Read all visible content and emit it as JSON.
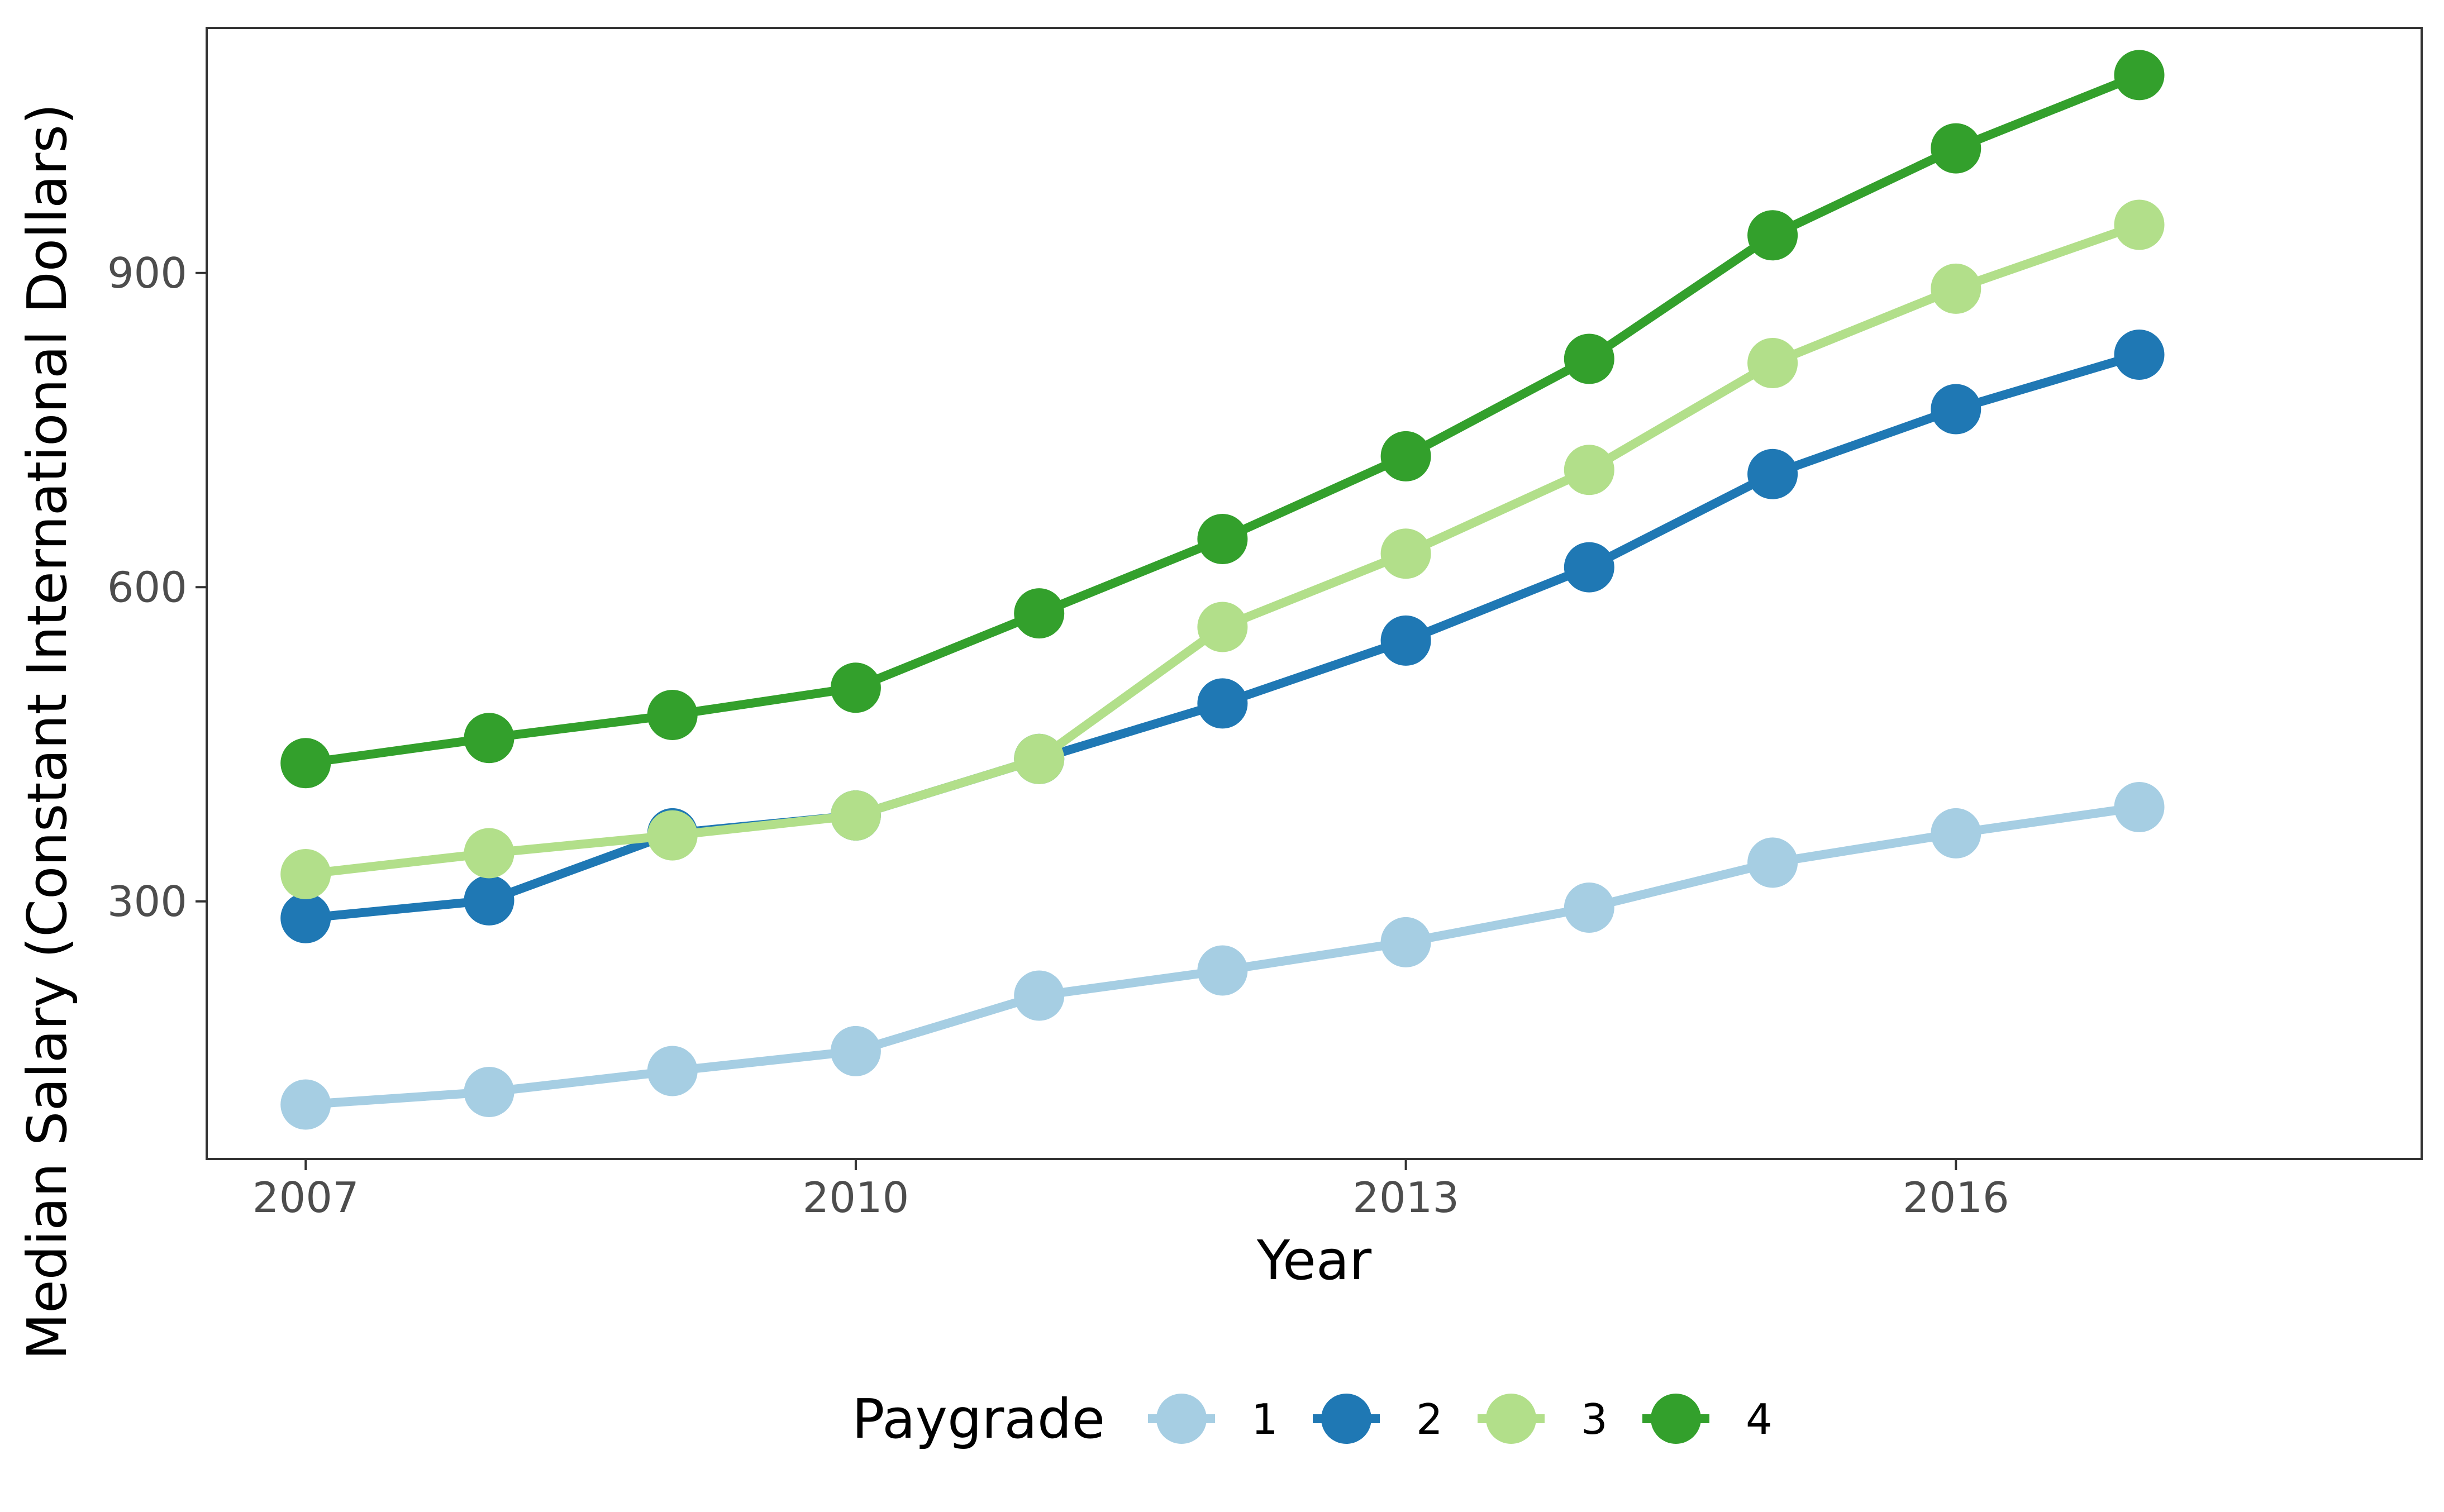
{
  "chart_data": {
    "type": "line",
    "title": "",
    "xlabel": "Year",
    "ylabel": "Median Salary (Constant International Dollars)",
    "x": [
      2007,
      2008,
      2009,
      2010,
      2011,
      2012,
      2013,
      2014,
      2015,
      2016,
      2017
    ],
    "x_ticks": [
      "2007",
      "2010",
      "2013",
      "2016"
    ],
    "y_ticks": [
      "300",
      "600",
      "900"
    ],
    "xlim": [
      2006.46,
      2018.54
    ],
    "ylim": [
      54,
      1134
    ],
    "grid": false,
    "legend": {
      "title": "Paygrade",
      "placement": "bottom"
    },
    "series": [
      {
        "name": "1",
        "color": "#a6cee3",
        "values": [
          106,
          118,
          138,
          157,
          210,
          234,
          261,
          294,
          337,
          365,
          390
        ]
      },
      {
        "name": "2",
        "color": "#1f78b4",
        "values": [
          284,
          301,
          365,
          382,
          436,
          489,
          549,
          619,
          708,
          770,
          822
        ]
      },
      {
        "name": "3",
        "color": "#b2df8a",
        "values": [
          326,
          346,
          363,
          382,
          436,
          562,
          632,
          712,
          814,
          885,
          946
        ]
      },
      {
        "name": "4",
        "color": "#33a02c",
        "values": [
          432,
          456,
          478,
          504,
          575,
          646,
          725,
          818,
          936,
          1019,
          1089
        ]
      }
    ]
  }
}
